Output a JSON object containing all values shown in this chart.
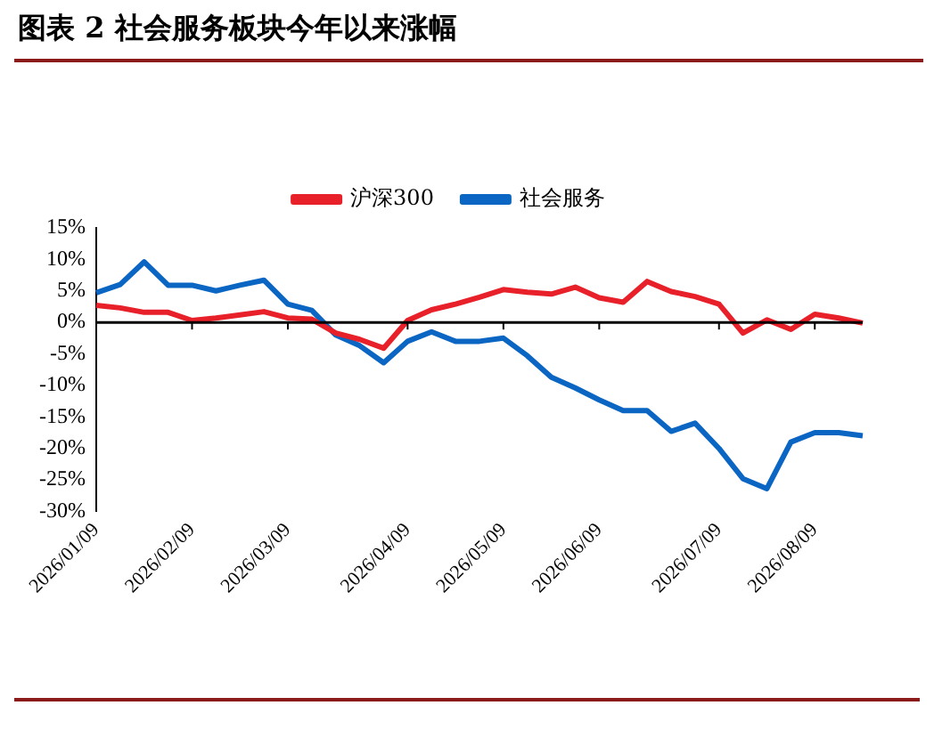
{
  "chart_data": {
    "type": "line",
    "title": "图表 2   社会服务板块今年以来涨幅",
    "categories": [
      "2026/01/09",
      null,
      null,
      null,
      "2026/02/09",
      null,
      null,
      null,
      "2026/03/09",
      null,
      null,
      null,
      null,
      "2026/04/09",
      null,
      null,
      null,
      "2026/05/09",
      null,
      null,
      null,
      "2026/06/09",
      null,
      null,
      null,
      null,
      "2026/07/09",
      null,
      null,
      null,
      "2026/08/09",
      null,
      null
    ],
    "series": [
      {
        "name": "沪深300",
        "color": "#e8202a",
        "values": [
          2.7,
          2.3,
          1.6,
          1.6,
          0.3,
          0.7,
          1.2,
          1.7,
          0.7,
          0.5,
          -1.7,
          -2.7,
          -4.1,
          0.3,
          2,
          2.9,
          4,
          5.2,
          4.8,
          4.5,
          5.6,
          3.9,
          3.2,
          6.5,
          4.9,
          4.1,
          2.9,
          -1.7,
          0.4,
          -1.1,
          1.3,
          0.7,
          -0.1
        ]
      },
      {
        "name": "社会服务",
        "color": "#0a66c2",
        "values": [
          4.7,
          6,
          9.6,
          5.9,
          5.9,
          5,
          5.9,
          6.7,
          2.9,
          1.9,
          -2,
          -3.7,
          -6.4,
          -3,
          -1.5,
          -3,
          -3,
          -2.5,
          -5.3,
          -8.7,
          -10.4,
          -12.3,
          -14,
          -14,
          -17.3,
          -16,
          -20,
          -24.8,
          -26.4,
          -19,
          -17.5,
          -17.5,
          -18
        ]
      }
    ],
    "ylim": [
      -30,
      15
    ],
    "yticks": [
      {
        "value": -30,
        "label": "-30%"
      },
      {
        "value": -25,
        "label": "-25%"
      },
      {
        "value": -20,
        "label": "-20%"
      },
      {
        "value": -15,
        "label": "-15%"
      },
      {
        "value": -10,
        "label": "-10%"
      },
      {
        "value": -5,
        "label": "-5%"
      },
      {
        "value": 0,
        "label": "0%"
      },
      {
        "value": 5,
        "label": "5%"
      },
      {
        "value": 10,
        "label": "10%"
      },
      {
        "value": 15,
        "label": "15%"
      }
    ],
    "ref_lines": [
      {
        "axis": "y",
        "value": 0,
        "color": "#000000"
      }
    ],
    "legend": "top",
    "grid": false,
    "marker": "none",
    "line_style": "solid"
  }
}
